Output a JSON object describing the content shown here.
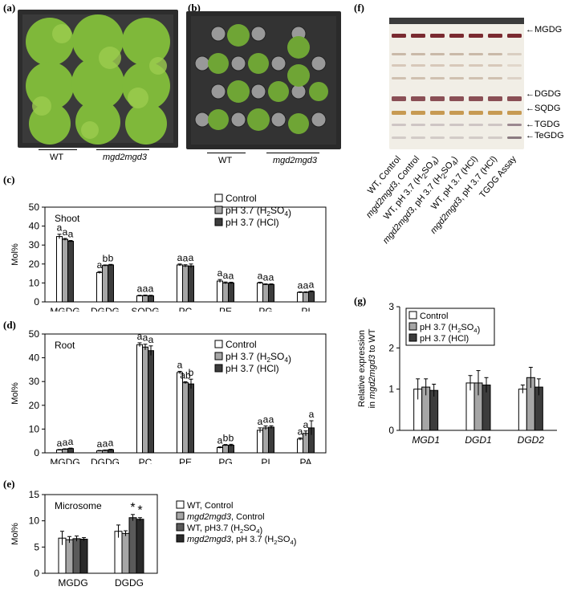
{
  "panels": {
    "a": {
      "label": "(a)",
      "captions": [
        "WT",
        "mgd2mgd3"
      ]
    },
    "b": {
      "label": "(b)",
      "captions": [
        "WT",
        "mgd2mgd3"
      ]
    },
    "f": {
      "label": "(f)",
      "bands": [
        "MGDG",
        "DGDG",
        "SQDG",
        "TGDG",
        "TeGDG"
      ],
      "lanes": [
        "WT, Control",
        "mgd2mgd3, Control",
        "WT, pH 3.7 (H2SO4)",
        "mgd2mgd3, pH 3.7 (H2SO4)",
        "WT, pH 3.7 (HCl)",
        "mgd2mgd3, pH 3.7 (HCl)",
        "TGDG Assay"
      ]
    }
  },
  "chart_data": [
    {
      "id": "c",
      "label": "(c)",
      "type": "bar",
      "inner_label": "Shoot",
      "ylabel": "Mol%",
      "ylim": [
        0,
        50
      ],
      "yticks": [
        0,
        10,
        20,
        30,
        40,
        50
      ],
      "categories": [
        "MGDG",
        "DGDG",
        "SQDG",
        "PC",
        "PE",
        "PG",
        "PI"
      ],
      "legend": [
        "Control",
        "pH 3.7 (H2SO4)",
        "pH 3.7 (HCl)"
      ],
      "legend_placement": "top-right",
      "series": [
        {
          "name": "Control",
          "color": "#ffffff",
          "values": [
            34.5,
            15.5,
            3.2,
            19.5,
            11.0,
            10.0,
            5.0
          ],
          "errors": [
            1.2,
            0.5,
            0.3,
            0.5,
            0.8,
            0.4,
            0.3
          ]
        },
        {
          "name": "pH 3.7 (H2SO4)",
          "color": "#a6a6a6",
          "values": [
            33.0,
            19.2,
            3.3,
            19.0,
            10.0,
            9.2,
            5.0
          ],
          "errors": [
            0.5,
            0.3,
            0.3,
            0.6,
            0.5,
            0.3,
            0.3
          ]
        },
        {
          "name": "pH 3.7 (HCl)",
          "color": "#3c3c3c",
          "values": [
            32.0,
            19.5,
            3.2,
            19.0,
            10.0,
            9.2,
            5.5
          ],
          "errors": [
            0.4,
            0.3,
            0.3,
            1.0,
            0.4,
            0.3,
            0.3
          ]
        }
      ],
      "annotations": [
        [
          "a",
          "a",
          "a"
        ],
        [
          "a",
          "b",
          "b"
        ],
        [
          "a",
          "a",
          "a"
        ],
        [
          "a",
          "a",
          "a"
        ],
        [
          "a",
          "a",
          "a"
        ],
        [
          "a",
          "a",
          "a"
        ],
        [
          "a",
          "a",
          "a"
        ]
      ]
    },
    {
      "id": "d",
      "label": "(d)",
      "type": "bar",
      "inner_label": "Root",
      "ylabel": "Mol%",
      "ylim": [
        0,
        50
      ],
      "yticks": [
        0,
        10,
        20,
        30,
        40,
        50
      ],
      "categories": [
        "MGDG",
        "DGDG",
        "PC",
        "PE",
        "PG",
        "PI",
        "PA"
      ],
      "legend": [
        "Control",
        "pH 3.7 (H2SO4)",
        "pH 3.7 (HCl)"
      ],
      "legend_placement": "top-right",
      "series": [
        {
          "name": "Control",
          "color": "#ffffff",
          "values": [
            1.2,
            0.8,
            45.5,
            33.8,
            2.2,
            9.5,
            5.8
          ],
          "errors": [
            0.2,
            0.2,
            0.8,
            0.5,
            0.3,
            1.0,
            0.5
          ]
        },
        {
          "name": "pH 3.7 (H2SO4)",
          "color": "#a6a6a6",
          "values": [
            1.5,
            1.0,
            44.5,
            29.5,
            3.2,
            10.5,
            8.2
          ],
          "errors": [
            0.2,
            0.2,
            1.2,
            0.4,
            0.3,
            0.8,
            1.0
          ]
        },
        {
          "name": "pH 3.7 (HCl)",
          "color": "#3c3c3c",
          "values": [
            1.8,
            1.3,
            43.0,
            29.0,
            3.2,
            10.8,
            10.5
          ],
          "errors": [
            0.2,
            0.2,
            2.0,
            2.0,
            0.4,
            0.6,
            3.0
          ]
        }
      ],
      "annotations": [
        [
          "a",
          "a",
          "a"
        ],
        [
          "a",
          "a",
          "a"
        ],
        [
          "a",
          "a",
          "a"
        ],
        [
          "a",
          "ab",
          "b"
        ],
        [
          "a",
          "b",
          "b"
        ],
        [
          "a",
          "a",
          "a"
        ],
        [
          "a",
          "a",
          "a"
        ]
      ]
    },
    {
      "id": "e",
      "label": "(e)",
      "type": "bar",
      "inner_label": "Microsome",
      "ylabel": "Mol%",
      "ylim": [
        0,
        15
      ],
      "yticks": [
        0,
        5,
        10,
        15
      ],
      "categories": [
        "MGDG",
        "DGDG"
      ],
      "legend": [
        "WT, Control",
        "mgd2mgd3, Control",
        "WT, pH3.7 (H2SO4)",
        "mgd2mgd3, pH 3.7 (H2SO4)"
      ],
      "legend_placement": "right",
      "series": [
        {
          "name": "WT, Control",
          "color": "#ffffff",
          "values": [
            6.7,
            8.0
          ],
          "errors": [
            1.3,
            1.2
          ]
        },
        {
          "name": "mgd2mgd3, Control",
          "color": "#a6a6a6",
          "values": [
            6.4,
            7.6
          ],
          "errors": [
            0.6,
            0.5
          ]
        },
        {
          "name": "WT, pH3.7 (H2SO4)",
          "color": "#5a5a5a",
          "values": [
            6.6,
            10.6
          ],
          "errors": [
            0.5,
            0.6
          ]
        },
        {
          "name": "mgd2mgd3, pH 3.7 (H2SO4)",
          "color": "#2a2a2a",
          "values": [
            6.5,
            10.3
          ],
          "errors": [
            0.3,
            0.3
          ]
        }
      ],
      "annotations": [
        [
          "",
          "",
          "",
          ""
        ],
        [
          "",
          "",
          "*",
          "*"
        ]
      ]
    },
    {
      "id": "g",
      "label": "(g)",
      "type": "bar",
      "ylabel": "Relative expression in mgd2mgd3 to WT",
      "ylim": [
        0,
        3
      ],
      "yticks": [
        0,
        1,
        2,
        3
      ],
      "categories": [
        "MGD1",
        "DGD1",
        "DGD2"
      ],
      "legend": [
        "Control",
        "pH 3.7 (H2SO4)",
        "pH 3.7 (HCl)"
      ],
      "legend_placement": "top-left",
      "series": [
        {
          "name": "Control",
          "color": "#ffffff",
          "values": [
            1.0,
            1.15,
            1.0
          ],
          "errors": [
            0.25,
            0.18,
            0.1
          ]
        },
        {
          "name": "pH 3.7 (H2SO4)",
          "color": "#a6a6a6",
          "values": [
            1.05,
            1.15,
            1.28
          ],
          "errors": [
            0.2,
            0.3,
            0.25
          ]
        },
        {
          "name": "pH 3.7 (HCl)",
          "color": "#3c3c3c",
          "values": [
            0.97,
            1.1,
            1.05
          ],
          "errors": [
            0.15,
            0.18,
            0.2
          ]
        }
      ],
      "annotations": []
    }
  ]
}
